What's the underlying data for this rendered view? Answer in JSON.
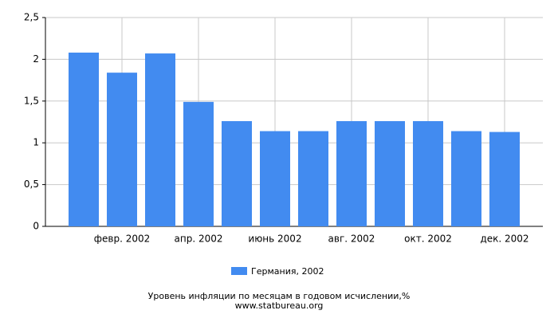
{
  "chart_data": {
    "type": "bar",
    "categories": [
      null,
      "февр. 2002",
      null,
      "апр. 2002",
      null,
      "июнь 2002",
      null,
      "авг. 2002",
      null,
      "окт. 2002",
      null,
      "дек. 2002"
    ],
    "series": [
      {
        "name": "Германия, 2002",
        "color": "#428bf0",
        "values": [
          2.08,
          1.84,
          2.07,
          1.49,
          1.26,
          1.14,
          1.14,
          1.26,
          1.26,
          1.26,
          1.14,
          1.13
        ]
      }
    ],
    "ylim": [
      0,
      2.5
    ],
    "yticks": [
      0,
      {
        "value": 0.5,
        "label": "0,5"
      },
      1,
      {
        "value": 1.5,
        "label": "1,5"
      },
      2,
      {
        "value": 2.5,
        "label": "2,5"
      }
    ],
    "grid": true,
    "xlabel": "Уровень инфляции по месяцам в годовом исчислении,%",
    "source": "www.statbureau.org"
  }
}
